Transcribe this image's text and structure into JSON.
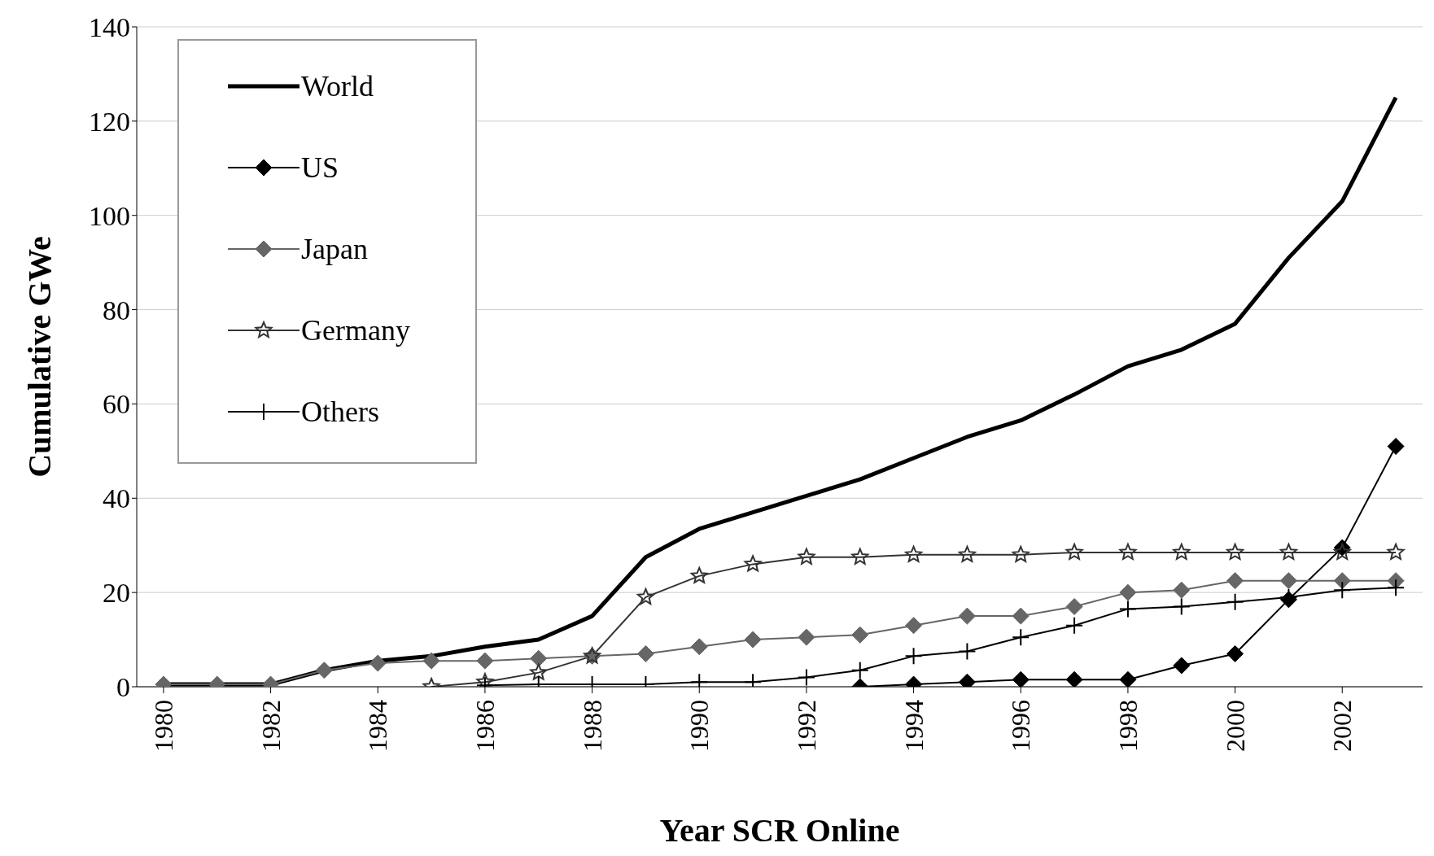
{
  "chart_data": {
    "type": "line",
    "xlabel": "Year SCR Online",
    "ylabel": "Cumulative GWe",
    "x": [
      1980,
      1981,
      1982,
      1983,
      1984,
      1985,
      1986,
      1987,
      1988,
      1989,
      1990,
      1991,
      1992,
      1993,
      1994,
      1995,
      1996,
      1997,
      1998,
      1999,
      2000,
      2001,
      2002,
      2003
    ],
    "xlim": [
      1979.5,
      2003.5
    ],
    "xticks": [
      1980,
      1982,
      1984,
      1986,
      1988,
      1990,
      1992,
      1994,
      1996,
      1998,
      2000,
      2002
    ],
    "series": [
      {
        "name": "World",
        "color": "#000000",
        "marker": "none",
        "values": [
          0.5,
          0.5,
          0.5,
          3.5,
          5.5,
          6.5,
          8.5,
          10,
          15,
          27.5,
          33.5,
          37,
          40.5,
          44,
          48.5,
          53,
          56.5,
          62,
          68,
          71.5,
          77,
          91,
          103,
          125
        ]
      },
      {
        "name": "US",
        "color": "#000000",
        "marker": "diamond",
        "values": [
          null,
          null,
          null,
          null,
          null,
          null,
          null,
          null,
          null,
          null,
          null,
          null,
          null,
          0,
          0.5,
          1,
          1.5,
          1.5,
          1.5,
          4.5,
          7,
          18.5,
          29.5,
          51
        ]
      },
      {
        "name": "Japan",
        "color": "#666666",
        "marker": "diamond",
        "values": [
          0.5,
          0.5,
          0.5,
          3.5,
          5,
          5.5,
          5.5,
          6,
          6.5,
          7,
          8.5,
          10,
          10.5,
          11,
          13,
          15,
          15,
          17,
          20,
          20.5,
          22.5,
          22.5,
          22.5,
          22.5
        ]
      },
      {
        "name": "Germany",
        "color": "#333333",
        "marker": "star",
        "values": [
          null,
          null,
          null,
          null,
          null,
          0,
          1,
          3,
          6.5,
          19,
          23.5,
          26,
          27.5,
          27.5,
          28,
          28,
          28,
          28.5,
          28.5,
          28.5,
          28.5,
          28.5,
          28.5,
          28.5
        ]
      },
      {
        "name": "Others",
        "color": "#000000",
        "marker": "cross",
        "values": [
          null,
          null,
          null,
          null,
          null,
          null,
          0.3,
          0.5,
          0.5,
          0.5,
          1,
          1,
          2,
          3.5,
          6.5,
          7.5,
          10.5,
          13,
          16.5,
          17,
          18,
          19,
          20.5,
          21
        ]
      }
    ],
    "ylim": [
      0,
      140
    ],
    "yticks": [
      0,
      20,
      40,
      60,
      80,
      100,
      120,
      140
    ],
    "grid": "y",
    "legend": "top left",
    "line_style": "solid"
  }
}
